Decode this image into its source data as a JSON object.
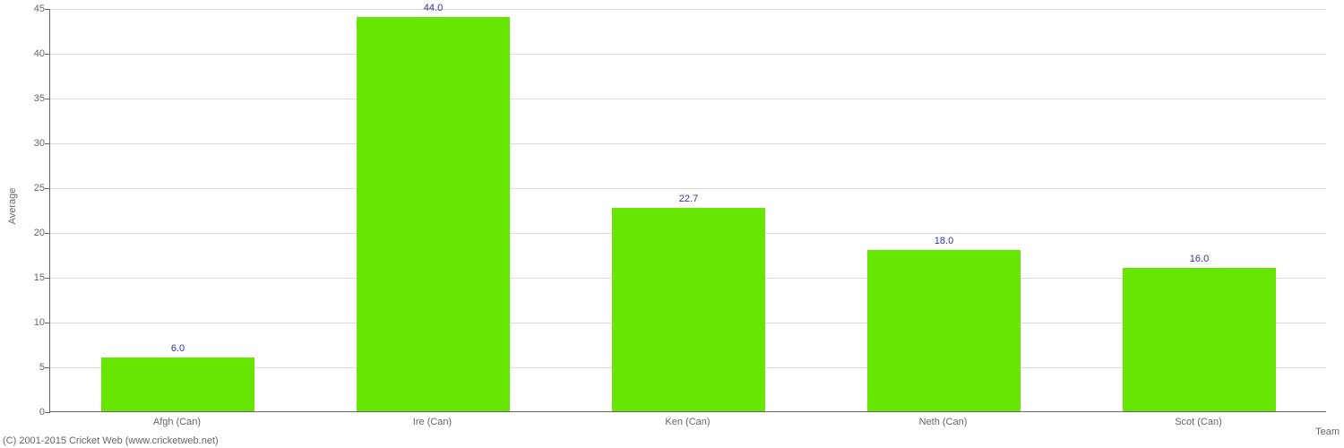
{
  "chart": {
    "type": "bar",
    "background_color": "#ffffff",
    "grid_color": "#dddddd",
    "axis_color": "#666666",
    "axis_label_color": "#666666",
    "value_label_color": "#33339a",
    "bar_colors": [
      "#66e600",
      "#66e600",
      "#66e600",
      "#66e600",
      "#66e600"
    ],
    "categories": [
      "Afgh (Can)",
      "Ire (Can)",
      "Ken (Can)",
      "Neth (Can)",
      "Scot (Can)"
    ],
    "values": [
      6.0,
      44.0,
      22.7,
      18.0,
      16.0
    ],
    "value_labels": [
      "6.0",
      "44.0",
      "22.7",
      "18.0",
      "16.0"
    ],
    "ylim": [
      0,
      45
    ],
    "ytick_step": 5,
    "yticks": [
      0,
      5,
      10,
      15,
      20,
      25,
      30,
      35,
      40,
      45
    ],
    "ylabel": "Average",
    "xlabel": "Team",
    "bar_width_ratio": 0.6,
    "axis_fontsize": 11,
    "value_fontsize": 11
  },
  "copyright": "(C) 2001-2015 Cricket Web (www.cricketweb.net)"
}
